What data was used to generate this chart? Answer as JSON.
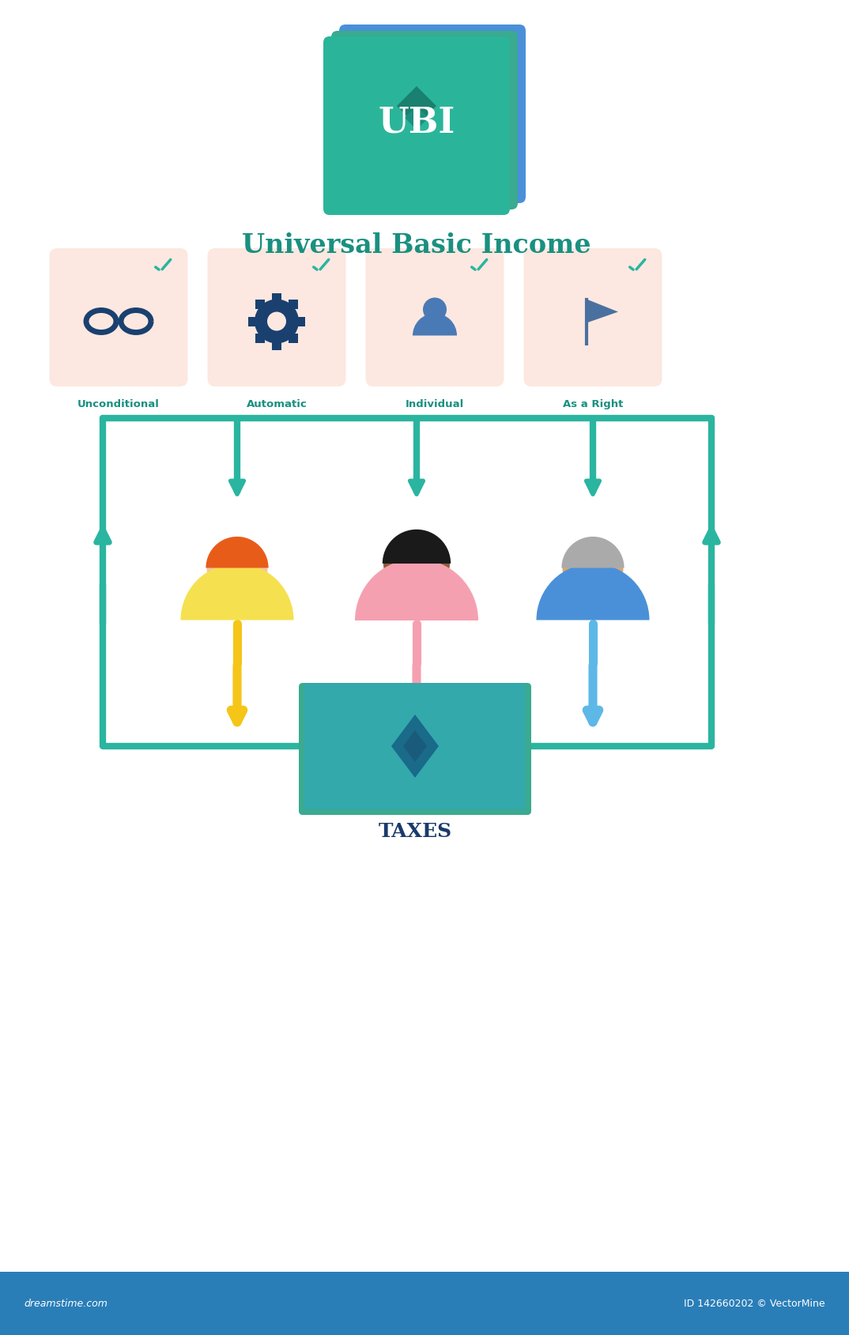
{
  "title_ubi": "UBI",
  "title_main": "Universal Basic Income",
  "subtitle_color": "#1a9080",
  "bg_color": "#ffffff",
  "teal_color": "#2ab5a0",
  "teal_dark": "#1a8a78",
  "icon_bg_color": "#fce8e0",
  "icon_labels": [
    "Unconditional",
    "Automatic",
    "Individual",
    "As a Right"
  ],
  "icon_label_color": "#1a9080",
  "taxes_label": "TAXES",
  "taxes_label_color": "#1a3a6b",
  "arrow_colors": {
    "left_person": "#f5c518",
    "mid_person": "#f5a0b0",
    "right_person": "#5db8e8"
  },
  "person_colors": {
    "left_hair": "#e85c1a",
    "left_skin": "#f5c5a3",
    "left_shirt": "#f5e050",
    "mid_hair": "#1a1a1a",
    "mid_skin": "#8b5e3c",
    "mid_shirt": "#f5a0b0",
    "right_hair": "#aaaaaa",
    "right_skin": "#d4a875",
    "right_shirt": "#4a90d9"
  },
  "money_green": "#2ab5a0",
  "money_blue": "#4a90d9",
  "border_color": "#2ab5a0",
  "footer_bg": "#2a7eb8",
  "footer_text_left": "dreamstime.com",
  "footer_text_right": "ID 142660202 © VectorMine"
}
